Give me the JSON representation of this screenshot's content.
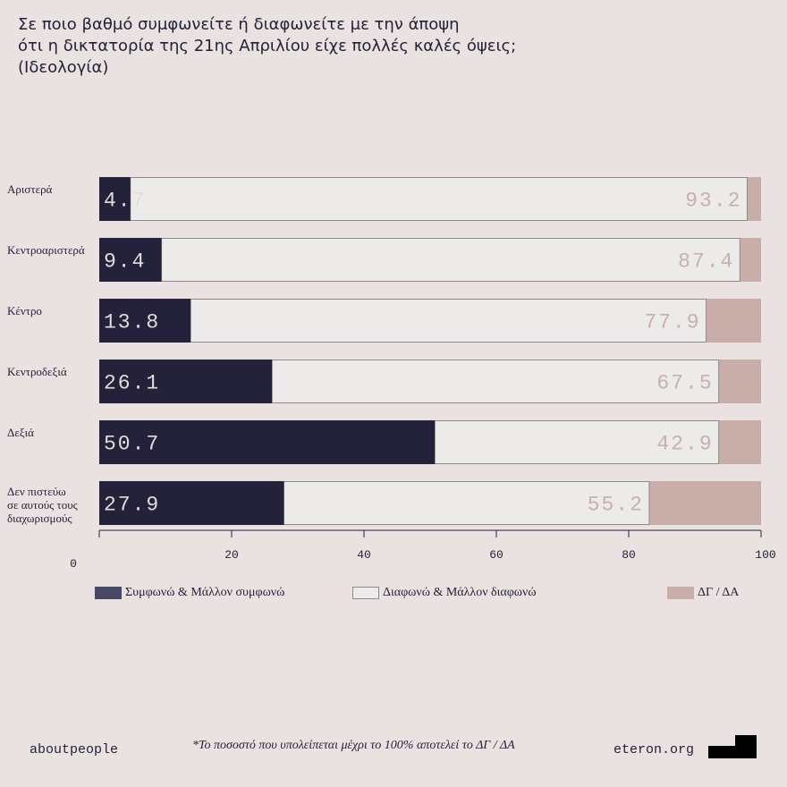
{
  "title_lines": [
    "Σε ποιο βαθμό συμφωνείτε ή διαφωνείτε με την άποψη",
    "ότι η δικτατορία της 21ης Απριλίου είχε πολλές καλές όψεις;",
    "(Ιδεολογία)"
  ],
  "chart_data": {
    "type": "bar",
    "orientation": "horizontal",
    "stacked": true,
    "title": "Σε ποιο βαθμό συμφωνείτε ή διαφωνείτε με την άποψη ότι η δικτατορία της 21ης Απριλίου είχε πολλές καλές όψεις; (Ιδεολογία)",
    "categories": [
      [
        "Αριστερά"
      ],
      [
        "Κεντροαριστερά"
      ],
      [
        "Κέντρο"
      ],
      [
        "Κεντροδεξιά"
      ],
      [
        "Δεξιά"
      ],
      [
        "Δεν πιστεύω",
        "σε αυτούς τους",
        "διαχωρισμούς"
      ]
    ],
    "series": [
      {
        "name": "Συμφωνώ & Μάλλον συμφωνώ",
        "color": "#23223a",
        "values": [
          4.7,
          9.4,
          13.8,
          26.1,
          50.7,
          27.9
        ]
      },
      {
        "name": "Διαφωνώ & Μάλλον διαφωνώ",
        "color": "#ecebe9",
        "values": [
          93.2,
          87.4,
          77.9,
          67.5,
          42.9,
          55.2
        ]
      },
      {
        "name": "ΔΓ / ΔΑ",
        "color": "#c9ada8",
        "values": [
          2.1,
          3.2,
          8.3,
          6.4,
          6.4,
          16.9
        ]
      }
    ],
    "xlim": [
      0,
      100
    ],
    "xticks": [
      "0",
      "20",
      "40",
      "60",
      "80",
      "100"
    ],
    "grid": false,
    "legend_position": "bottom"
  },
  "legend": [
    {
      "label": "Συμφωνώ & Μάλλον συμφωνώ"
    },
    {
      "label": "Διαφωνώ & Μάλλον διαφωνώ"
    },
    {
      "label": "ΔΓ / ΔΑ"
    }
  ],
  "footer": {
    "left": "aboutpeople",
    "note": "*Το ποσοστό που υπολείπεται μέχρι το 100% αποτελεί το ΔΓ / ΔΑ",
    "right": "eteron.org"
  }
}
